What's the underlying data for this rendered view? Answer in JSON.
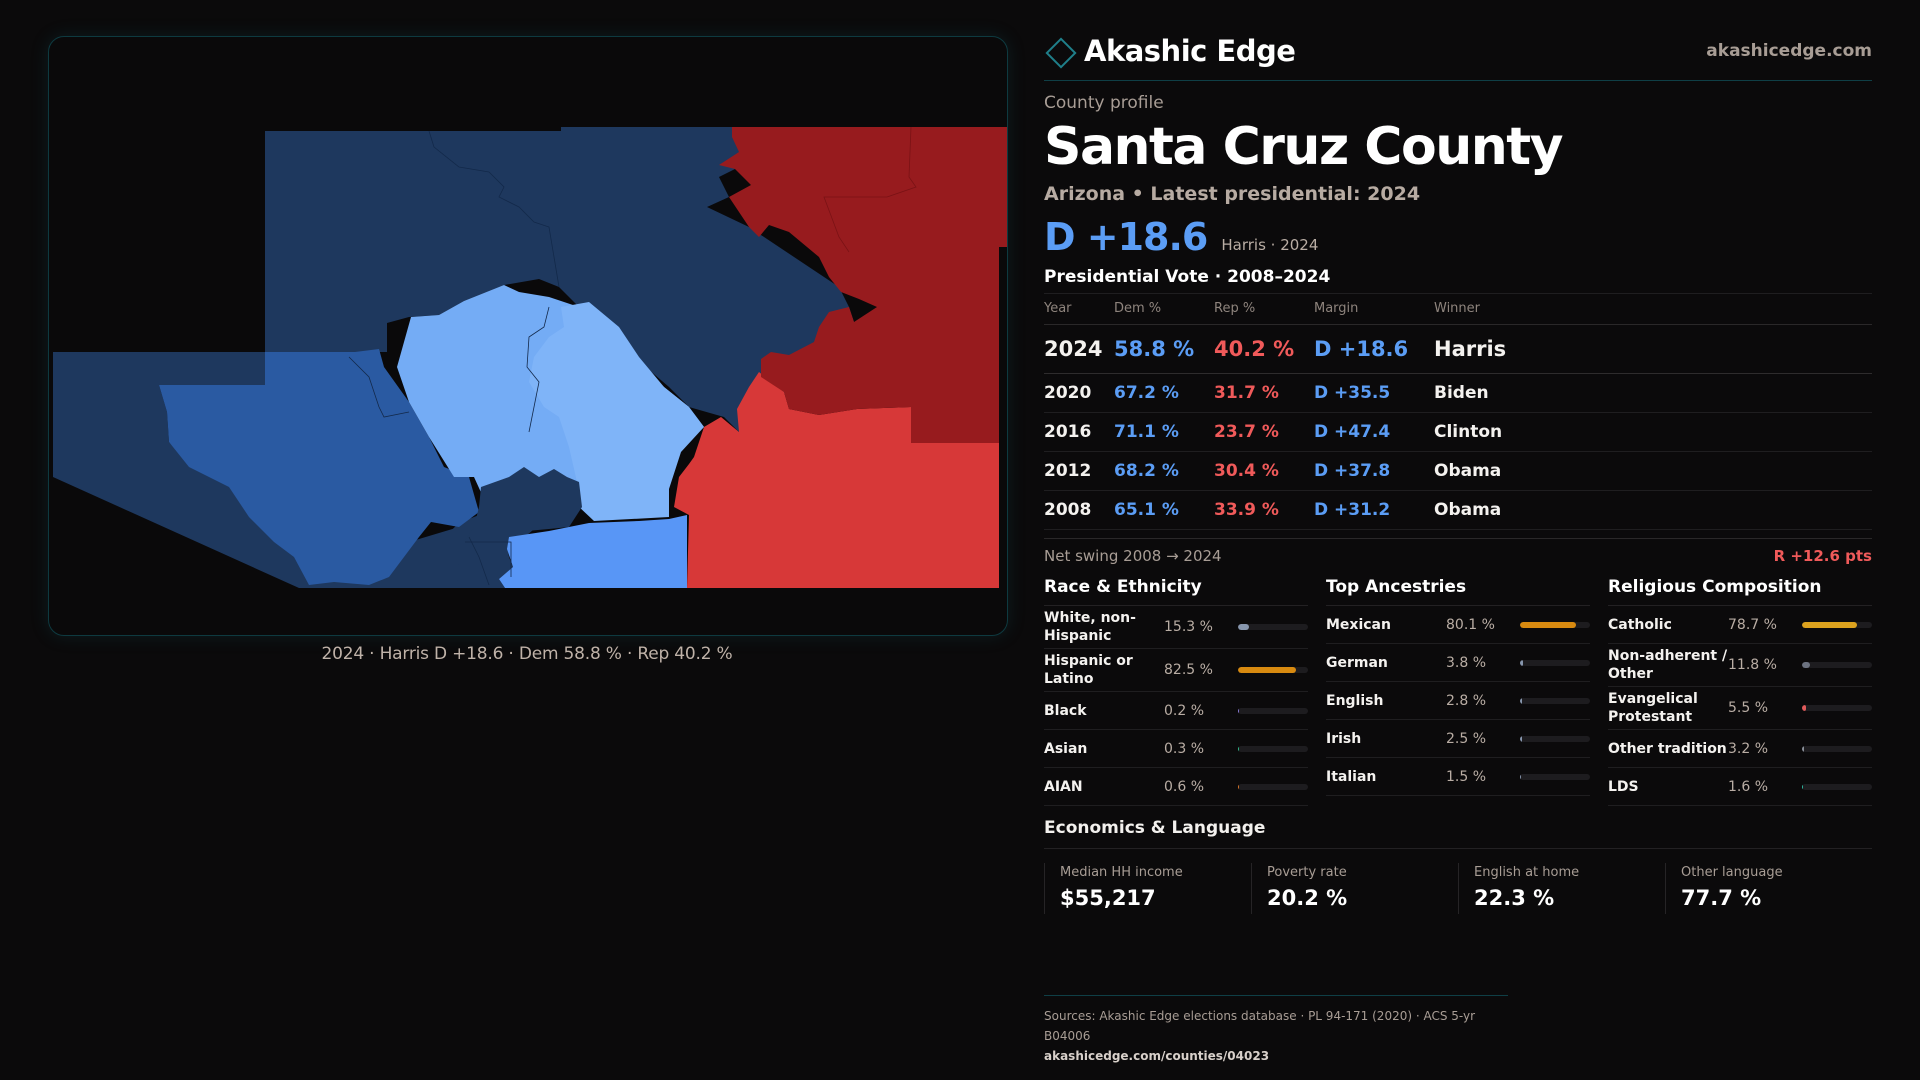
{
  "brand": {
    "name": "Akashic Edge",
    "site": "akashicedge.com",
    "logo_icon": "diamond-outline-icon"
  },
  "header": {
    "kicker": "County profile",
    "title": "Santa Cruz County",
    "subtitle": "Arizona • Latest presidential: 2024",
    "margin": "D +18.6",
    "margin_detail": "Harris · 2024"
  },
  "colors": {
    "dem": "#5b9df5",
    "rep": "#f05a5a",
    "accent": "#1f7f8a"
  },
  "map": {
    "caption": "2024 · Harris D +18.6 · Dem 58.8 % · Rep 40.2 %",
    "region_fills": {
      "strong_dem": "#1e385e",
      "dem": "#2a5aa2",
      "lean_dem_mid": "#5896f6",
      "lean_dem": "#74acf5",
      "tilt_dem": "#7fb4f8",
      "lean_rep": "#d73838",
      "strong_rep": "#971b1e"
    }
  },
  "votes": {
    "title": "Presidential Vote · 2008–2024",
    "headers": [
      "Year",
      "Dem %",
      "Rep %",
      "Margin",
      "Winner"
    ],
    "rows": [
      {
        "year": "2024",
        "dem": "58.8 %",
        "rep": "40.2 %",
        "margin": "D +18.6",
        "winner": "Harris"
      },
      {
        "year": "2020",
        "dem": "67.2 %",
        "rep": "31.7 %",
        "margin": "D +35.5",
        "winner": "Biden"
      },
      {
        "year": "2016",
        "dem": "71.1 %",
        "rep": "23.7 %",
        "margin": "D +47.4",
        "winner": "Clinton"
      },
      {
        "year": "2012",
        "dem": "68.2 %",
        "rep": "30.4 %",
        "margin": "D +37.8",
        "winner": "Obama"
      },
      {
        "year": "2008",
        "dem": "65.1 %",
        "rep": "33.9 %",
        "margin": "D +31.2",
        "winner": "Obama"
      }
    ],
    "swing_label": "Net swing 2008 → 2024",
    "swing_value": "R +12.6 pts"
  },
  "race": {
    "title": "Race & Ethnicity",
    "items": [
      {
        "label": "White, non-Hispanic",
        "value": "15.3 %",
        "pct": 15.3,
        "color": "#8796ad"
      },
      {
        "label": "Hispanic or Latino",
        "value": "82.5 %",
        "pct": 82.5,
        "color": "#d88a10"
      },
      {
        "label": "Black",
        "value": "0.2 %",
        "pct": 0.2,
        "color": "#8a7ad8"
      },
      {
        "label": "Asian",
        "value": "0.3 %",
        "pct": 0.3,
        "color": "#2fb88a"
      },
      {
        "label": "AIAN",
        "value": "0.6 %",
        "pct": 0.6,
        "color": "#d8762a"
      }
    ]
  },
  "ancestry": {
    "title": "Top Ancestries",
    "items": [
      {
        "label": "Mexican",
        "value": "80.1 %",
        "pct": 80.1,
        "color": "#d88a10"
      },
      {
        "label": "German",
        "value": "3.8 %",
        "pct": 3.8,
        "color": "#8796ad"
      },
      {
        "label": "English",
        "value": "2.8 %",
        "pct": 2.8,
        "color": "#8796ad"
      },
      {
        "label": "Irish",
        "value": "2.5 %",
        "pct": 2.5,
        "color": "#8796ad"
      },
      {
        "label": "Italian",
        "value": "1.5 %",
        "pct": 1.5,
        "color": "#8796ad"
      }
    ]
  },
  "religion": {
    "title": "Religious Composition",
    "items": [
      {
        "label": "Catholic",
        "value": "78.7 %",
        "pct": 78.7,
        "color": "#dca21e"
      },
      {
        "label": "Non-adherent / Other",
        "value": "11.8 %",
        "pct": 11.8,
        "color": "#6c7280"
      },
      {
        "label": "Evangelical Protestant",
        "value": "5.5 %",
        "pct": 5.5,
        "color": "#e05a5a"
      },
      {
        "label": "Other tradition",
        "value": "3.2 %",
        "pct": 3.2,
        "color": "#8a8f99"
      },
      {
        "label": "LDS",
        "value": "1.6 %",
        "pct": 1.6,
        "color": "#2fb8a0"
      }
    ]
  },
  "economics": {
    "title": "Economics & Language",
    "stats": [
      {
        "label": "Median HH income",
        "value": "$55,217"
      },
      {
        "label": "Poverty rate",
        "value": "20.2 %"
      },
      {
        "label": "English at home",
        "value": "22.3 %"
      },
      {
        "label": "Other language",
        "value": "77.7 %"
      }
    ]
  },
  "footer": {
    "sources": "Sources: Akashic Edge elections database · PL 94-171 (2020) · ACS 5-yr B04006",
    "url": "akashicedge.com/counties/04023"
  }
}
